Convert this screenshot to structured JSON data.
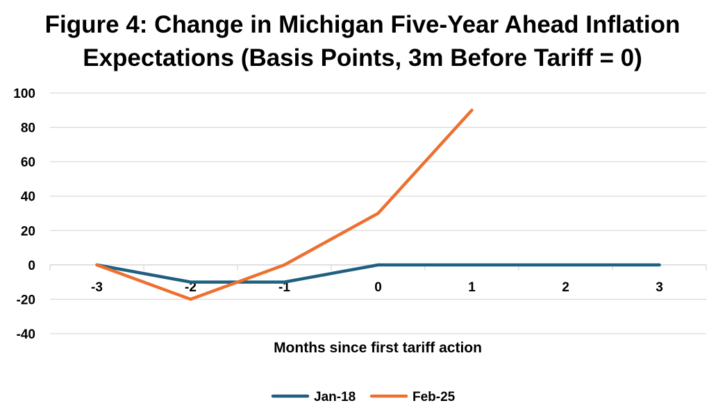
{
  "chart_data": {
    "type": "line",
    "title": "Figure 4: Change in Michigan Five-Year Ahead Inflation",
    "title_line2": "Expectations (Basis Points, 3m Before Tariff = 0)",
    "xlabel": "Months since first tariff action",
    "ylabel": "",
    "categories": [
      "-3",
      "-2",
      "-1",
      "0",
      "1",
      "2",
      "3"
    ],
    "x": [
      -3,
      -2,
      -1,
      0,
      1,
      2,
      3
    ],
    "ylim": [
      -40,
      100
    ],
    "yticks": [
      100,
      80,
      60,
      40,
      20,
      0,
      -20,
      -40
    ],
    "grid": true,
    "legend_position": "bottom",
    "series": [
      {
        "name": "Jan-18",
        "color": "#1F5F7F",
        "values": [
          0,
          -10,
          -10,
          0,
          0,
          0,
          0
        ]
      },
      {
        "name": "Feb-25",
        "color": "#ED7030",
        "values": [
          0,
          -20,
          0,
          30,
          90,
          null,
          null
        ]
      }
    ]
  },
  "colors": {
    "gridline": "#D9D9D9",
    "axis_line": "#D9D9D9",
    "text": "#000000",
    "background": "#FFFFFF"
  }
}
